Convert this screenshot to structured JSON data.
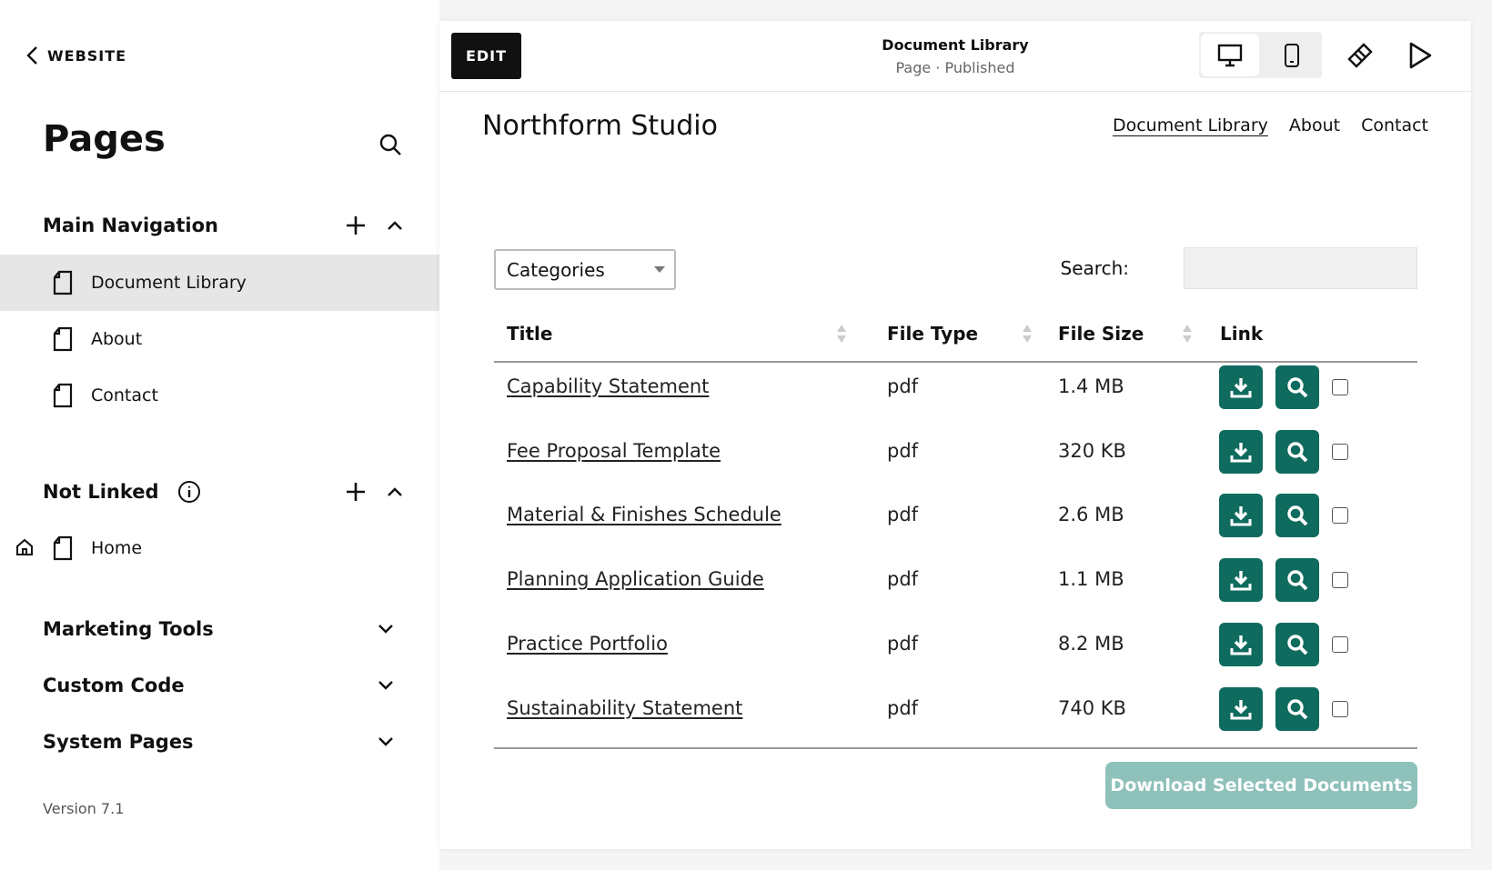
{
  "sidebar": {
    "back": "WEBSITE",
    "title": "Pages",
    "sections": [
      {
        "title": "Main Navigation",
        "pages": [
          "Document Library",
          "About",
          "Contact"
        ]
      },
      {
        "title": "Not Linked",
        "pages": [
          "Home"
        ]
      }
    ],
    "collapsed": [
      "Marketing Tools",
      "Custom Code",
      "System Pages"
    ],
    "version": "Version 7.1"
  },
  "toolbar": {
    "edit": "EDIT",
    "page_title": "Document Library",
    "page_status": "Page · Published"
  },
  "site": {
    "name": "Northform Studio",
    "nav": [
      "Document Library",
      "About",
      "Contact"
    ]
  },
  "table": {
    "filter": "Categories",
    "search_label": "Search:",
    "columns": [
      "Title",
      "File Type",
      "File Size",
      "Link"
    ],
    "rows": [
      [
        "Capability Statement",
        "pdf",
        "1.4 MB"
      ],
      [
        "Fee Proposal Template",
        "pdf",
        "320 KB"
      ],
      [
        "Material & Finishes Schedule",
        "pdf",
        "2.6 MB"
      ],
      [
        "Planning Application Guide",
        "pdf",
        "1.1 MB"
      ],
      [
        "Practice Portfolio",
        "pdf",
        "8.2 MB"
      ],
      [
        "Sustainability Statement",
        "pdf",
        "740 KB"
      ]
    ]
  },
  "download_button": "Download Selected Documents"
}
